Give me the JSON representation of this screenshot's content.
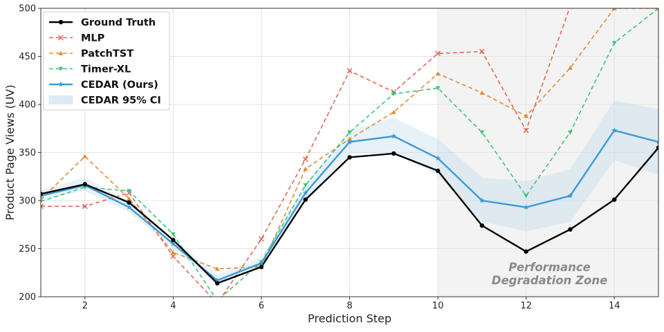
{
  "chart_data": {
    "type": "line",
    "xlabel": "Prediction Step",
    "ylabel": "Product Page Views (UV)",
    "xlim": [
      1,
      15
    ],
    "ylim": [
      200,
      500
    ],
    "x": [
      1,
      2,
      3,
      4,
      5,
      6,
      7,
      8,
      9,
      10,
      11,
      12,
      13,
      14,
      15
    ],
    "xticks": [
      2,
      4,
      6,
      8,
      10,
      12,
      14
    ],
    "yticks": [
      200,
      250,
      300,
      350,
      400,
      450,
      500
    ],
    "grid": true,
    "legend_position": "top-left",
    "shaded_region": {
      "x_start": 10,
      "x_end": 15,
      "label_line1": "Performance",
      "label_line2": "Degradation Zone"
    },
    "series": [
      {
        "name": "Ground Truth",
        "color": "#000000",
        "style": "solid",
        "marker": "circle",
        "values": [
          307,
          317,
          298,
          259,
          214,
          231,
          301,
          345,
          349,
          331,
          274,
          247,
          270,
          301,
          355
        ]
      },
      {
        "name": "MLP",
        "color": "#e06655",
        "style": "dashed",
        "marker": "x",
        "values": [
          294,
          294,
          308,
          242,
          193,
          260,
          343,
          435,
          413,
          453,
          455,
          373,
          502,
          502,
          502
        ]
      },
      {
        "name": "PatchTST",
        "color": "#e08a3a",
        "style": "dashed",
        "marker": "triangle",
        "values": [
          301,
          346,
          302,
          246,
          229,
          231,
          333,
          364,
          392,
          432,
          412,
          388,
          438,
          500,
          500
        ]
      },
      {
        "name": "Timer-XL",
        "color": "#3cc47a",
        "style": "dashed",
        "marker": "triangle-down",
        "values": [
          299,
          314,
          310,
          265,
          196,
          236,
          316,
          371,
          411,
          417,
          371,
          305,
          371,
          464,
          500
        ]
      },
      {
        "name": "CEDAR (Ours)",
        "color": "#3a9ad4",
        "style": "solid",
        "marker": "star",
        "values": [
          305,
          316,
          293,
          255,
          217,
          235,
          308,
          361,
          367,
          344,
          300,
          293,
          305,
          373,
          361
        ]
      }
    ],
    "confidence_band": {
      "name": "CEDAR 95% CI",
      "color": "#3a9ad4",
      "lower": [
        301,
        310,
        288,
        250,
        212,
        230,
        300,
        349,
        350,
        326,
        278,
        268,
        278,
        342,
        327
      ],
      "upper": [
        311,
        324,
        300,
        260,
        223,
        241,
        318,
        373,
        386,
        364,
        324,
        320,
        333,
        404,
        395
      ]
    }
  }
}
